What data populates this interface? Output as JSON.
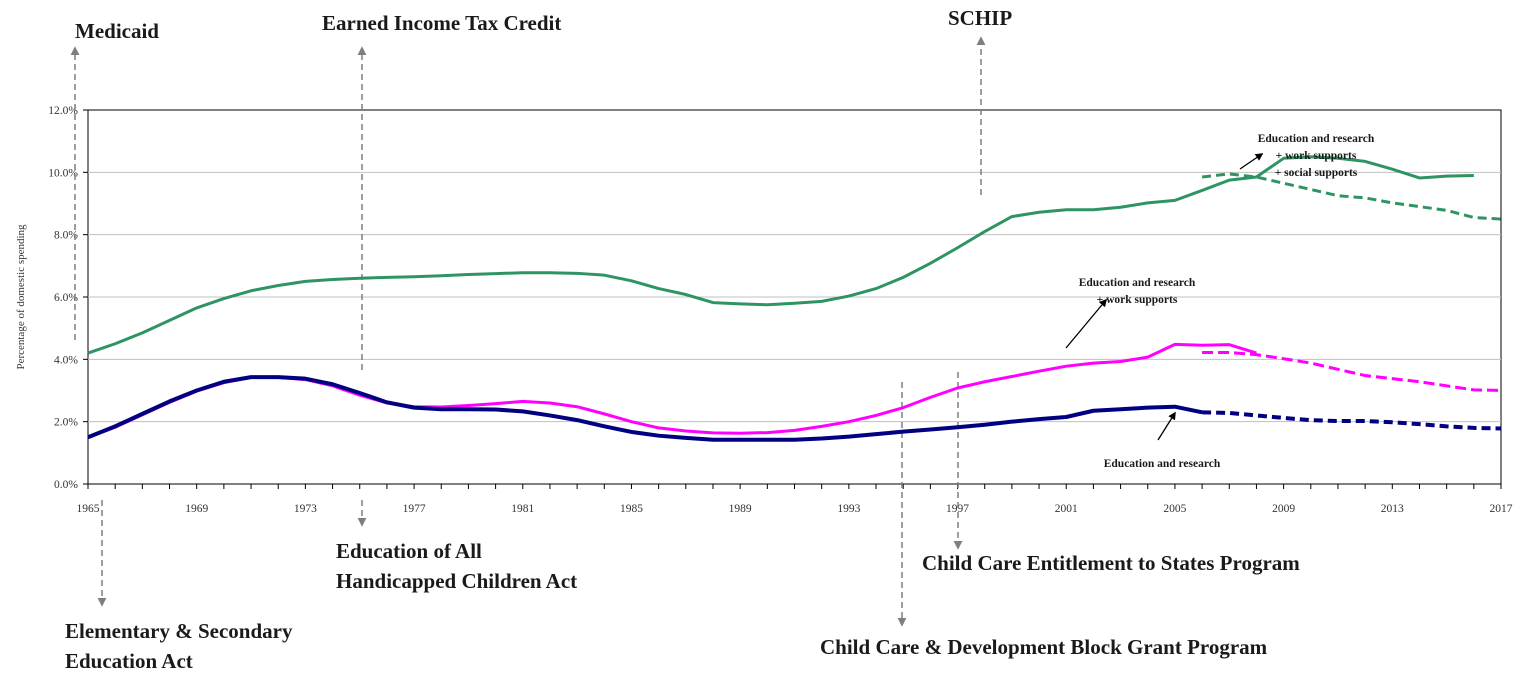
{
  "chart_data": {
    "type": "line",
    "ylabel": "Percentage of domestic spending",
    "xlabel": "",
    "xlim": [
      1965,
      2017
    ],
    "ylim": [
      0,
      12
    ],
    "x_ticks": [
      "1965",
      "1969",
      "1973",
      "1977",
      "1981",
      "1985",
      "1989",
      "1993",
      "1997",
      "2001",
      "2005",
      "2009",
      "2013",
      "2017"
    ],
    "y_ticks": [
      "0.0%",
      "2.0%",
      "4.0%",
      "6.0%",
      "8.0%",
      "10.0%",
      "12.0%"
    ],
    "grid": "horizontal",
    "projection_start": 2006,
    "series": [
      {
        "name": "Education and research + work supports + social supports",
        "color": "#2e9462",
        "points": [
          [
            1965,
            4.2
          ],
          [
            1966,
            4.5
          ],
          [
            1967,
            4.85
          ],
          [
            1968,
            5.25
          ],
          [
            1969,
            5.65
          ],
          [
            1970,
            5.95
          ],
          [
            1971,
            6.2
          ],
          [
            1972,
            6.37
          ],
          [
            1973,
            6.5
          ],
          [
            1974,
            6.56
          ],
          [
            1975,
            6.6
          ],
          [
            1976,
            6.63
          ],
          [
            1977,
            6.65
          ],
          [
            1978,
            6.68
          ],
          [
            1979,
            6.72
          ],
          [
            1980,
            6.75
          ],
          [
            1981,
            6.78
          ],
          [
            1982,
            6.78
          ],
          [
            1983,
            6.76
          ],
          [
            1984,
            6.7
          ],
          [
            1985,
            6.52
          ],
          [
            1986,
            6.27
          ],
          [
            1987,
            6.08
          ],
          [
            1988,
            5.82
          ],
          [
            1989,
            5.78
          ],
          [
            1990,
            5.75
          ],
          [
            1991,
            5.8
          ],
          [
            1992,
            5.86
          ],
          [
            1993,
            6.03
          ],
          [
            1994,
            6.27
          ],
          [
            1995,
            6.63
          ],
          [
            1996,
            7.08
          ],
          [
            1997,
            7.58
          ],
          [
            1998,
            8.1
          ],
          [
            1999,
            8.58
          ],
          [
            2000,
            8.72
          ],
          [
            2001,
            8.8
          ],
          [
            2002,
            8.8
          ],
          [
            2003,
            8.88
          ],
          [
            2004,
            9.02
          ],
          [
            2005,
            9.1
          ],
          [
            2006,
            9.42
          ],
          [
            2007,
            9.75
          ],
          [
            2008,
            9.85
          ],
          [
            2009,
            10.45
          ],
          [
            2010,
            10.5
          ],
          [
            2011,
            10.45
          ],
          [
            2012,
            10.35
          ],
          [
            2013,
            10.1
          ],
          [
            2014,
            9.82
          ],
          [
            2015,
            9.88
          ],
          [
            2016,
            9.9
          ]
        ],
        "projection": [
          [
            2006,
            9.85
          ],
          [
            2007,
            9.95
          ],
          [
            2008,
            9.85
          ],
          [
            2009,
            9.65
          ],
          [
            2010,
            9.45
          ],
          [
            2011,
            9.25
          ],
          [
            2012,
            9.18
          ],
          [
            2013,
            9.02
          ],
          [
            2014,
            8.9
          ],
          [
            2015,
            8.78
          ],
          [
            2016,
            8.55
          ],
          [
            2017,
            8.5
          ]
        ]
      },
      {
        "name": "Education and research + work supports",
        "color": "#ff00ff",
        "points": [
          [
            1965,
            1.5
          ],
          [
            1966,
            1.82
          ],
          [
            1967,
            2.22
          ],
          [
            1968,
            2.62
          ],
          [
            1969,
            2.98
          ],
          [
            1970,
            3.25
          ],
          [
            1971,
            3.42
          ],
          [
            1972,
            3.42
          ],
          [
            1973,
            3.35
          ],
          [
            1974,
            3.15
          ],
          [
            1975,
            2.85
          ],
          [
            1976,
            2.6
          ],
          [
            1977,
            2.48
          ],
          [
            1978,
            2.47
          ],
          [
            1979,
            2.52
          ],
          [
            1980,
            2.58
          ],
          [
            1981,
            2.65
          ],
          [
            1982,
            2.6
          ],
          [
            1983,
            2.48
          ],
          [
            1984,
            2.25
          ],
          [
            1985,
            2.0
          ],
          [
            1986,
            1.8
          ],
          [
            1987,
            1.7
          ],
          [
            1988,
            1.64
          ],
          [
            1989,
            1.63
          ],
          [
            1990,
            1.65
          ],
          [
            1991,
            1.72
          ],
          [
            1992,
            1.85
          ],
          [
            1993,
            2.0
          ],
          [
            1994,
            2.2
          ],
          [
            1995,
            2.45
          ],
          [
            1996,
            2.78
          ],
          [
            1997,
            3.08
          ],
          [
            1998,
            3.28
          ],
          [
            1999,
            3.45
          ],
          [
            2000,
            3.62
          ],
          [
            2001,
            3.78
          ],
          [
            2002,
            3.88
          ],
          [
            2003,
            3.93
          ],
          [
            2004,
            4.07
          ],
          [
            2005,
            4.48
          ],
          [
            2006,
            4.45
          ],
          [
            2007,
            4.47
          ],
          [
            2008,
            4.2
          ]
        ],
        "projection": [
          [
            2006,
            4.22
          ],
          [
            2007,
            4.22
          ],
          [
            2008,
            4.15
          ],
          [
            2009,
            4.02
          ],
          [
            2010,
            3.88
          ],
          [
            2011,
            3.68
          ],
          [
            2012,
            3.48
          ],
          [
            2013,
            3.38
          ],
          [
            2014,
            3.28
          ],
          [
            2015,
            3.15
          ],
          [
            2016,
            3.02
          ],
          [
            2017,
            3.0
          ]
        ]
      },
      {
        "name": "Education and research",
        "color": "#000080",
        "points": [
          [
            1965,
            1.5
          ],
          [
            1966,
            1.85
          ],
          [
            1967,
            2.25
          ],
          [
            1968,
            2.65
          ],
          [
            1969,
            3.0
          ],
          [
            1970,
            3.28
          ],
          [
            1971,
            3.43
          ],
          [
            1972,
            3.43
          ],
          [
            1973,
            3.38
          ],
          [
            1974,
            3.2
          ],
          [
            1975,
            2.92
          ],
          [
            1976,
            2.62
          ],
          [
            1977,
            2.45
          ],
          [
            1978,
            2.4
          ],
          [
            1979,
            2.4
          ],
          [
            1980,
            2.39
          ],
          [
            1981,
            2.33
          ],
          [
            1982,
            2.2
          ],
          [
            1983,
            2.05
          ],
          [
            1984,
            1.85
          ],
          [
            1985,
            1.67
          ],
          [
            1986,
            1.55
          ],
          [
            1987,
            1.48
          ],
          [
            1988,
            1.42
          ],
          [
            1989,
            1.42
          ],
          [
            1990,
            1.42
          ],
          [
            1991,
            1.42
          ],
          [
            1992,
            1.46
          ],
          [
            1993,
            1.52
          ],
          [
            1994,
            1.6
          ],
          [
            1995,
            1.68
          ],
          [
            1996,
            1.75
          ],
          [
            1997,
            1.82
          ],
          [
            1998,
            1.9
          ],
          [
            1999,
            2.0
          ],
          [
            2000,
            2.08
          ],
          [
            2001,
            2.15
          ],
          [
            2002,
            2.35
          ],
          [
            2003,
            2.4
          ],
          [
            2004,
            2.45
          ],
          [
            2005,
            2.48
          ],
          [
            2006,
            2.3
          ]
        ],
        "projection": [
          [
            2006,
            2.3
          ],
          [
            2007,
            2.28
          ],
          [
            2008,
            2.2
          ],
          [
            2009,
            2.12
          ],
          [
            2010,
            2.05
          ],
          [
            2011,
            2.02
          ],
          [
            2012,
            2.02
          ],
          [
            2013,
            1.98
          ],
          [
            2014,
            1.92
          ],
          [
            2015,
            1.85
          ],
          [
            2016,
            1.8
          ],
          [
            2017,
            1.78
          ]
        ]
      }
    ],
    "series_labels": [
      [
        "Education and research",
        "+ work supports",
        "+ social supports"
      ],
      [
        "Education and research",
        "+ work supports"
      ],
      [
        "Education and research"
      ]
    ],
    "events_above": [
      {
        "year": 1965,
        "label": [
          "Medicaid"
        ]
      },
      {
        "year": 1975,
        "label": [
          "Earned Income Tax Credit"
        ]
      },
      {
        "year": 1998,
        "label": [
          "SCHIP"
        ]
      }
    ],
    "events_below": [
      {
        "year": 1965,
        "label": [
          "Elementary & Secondary",
          "Education Act"
        ]
      },
      {
        "year": 1975,
        "label": [
          "Education of All",
          "Handicapped Children Act"
        ]
      },
      {
        "year": 1997,
        "label": [
          "Child Care Entitlement to States Program"
        ]
      },
      {
        "year": 1995,
        "label": [
          "Child Care & Development Block Grant Program"
        ]
      }
    ]
  }
}
